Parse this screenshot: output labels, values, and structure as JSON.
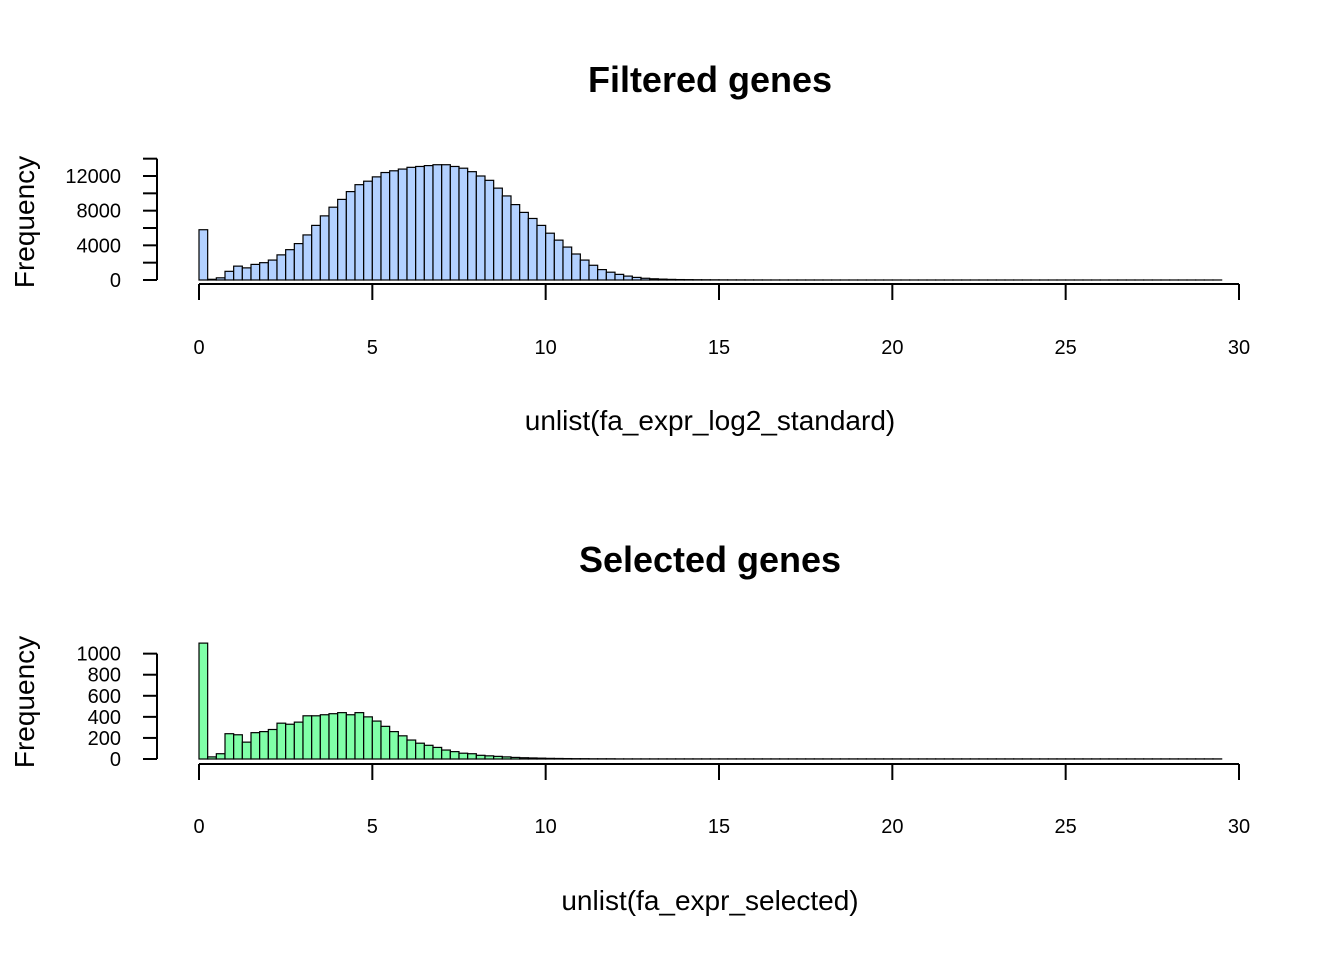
{
  "chart_data": [
    {
      "type": "bar",
      "title": "Filtered genes",
      "xlabel": "unlist(fa_expr_log2_standard)",
      "ylabel": "Frequency",
      "xlim": [
        0,
        30
      ],
      "ylim": [
        0,
        13500
      ],
      "x_ticks": [
        "0",
        "5",
        "10",
        "15",
        "20",
        "25",
        "30"
      ],
      "y_ticks": [
        "0",
        "4000",
        "8000",
        "12000"
      ],
      "minor_y_ticks": [
        2000,
        6000,
        10000,
        14000
      ],
      "bin_width": 0.25,
      "x_start": 0,
      "bar_color": "#b3d1ff",
      "values": [
        5800,
        80,
        250,
        1000,
        1600,
        1400,
        1800,
        2000,
        2300,
        2900,
        3500,
        4200,
        5200,
        6300,
        7400,
        8400,
        9300,
        10200,
        11000,
        11400,
        11900,
        12400,
        12600,
        12800,
        13000,
        13100,
        13200,
        13300,
        13300,
        13100,
        12900,
        12500,
        12000,
        11500,
        10600,
        9700,
        8700,
        7800,
        7100,
        6300,
        5400,
        4600,
        3800,
        3000,
        2300,
        1700,
        1200,
        900,
        650,
        450,
        300,
        200,
        140,
        100,
        70,
        50,
        40,
        30,
        25,
        20,
        15,
        12,
        10,
        8,
        6,
        5,
        4,
        3,
        3,
        2,
        2,
        2,
        1,
        1,
        1,
        1,
        1,
        1,
        1,
        1,
        1,
        1,
        1,
        1,
        1,
        1,
        1,
        1,
        1,
        1,
        1,
        1,
        1,
        1,
        1,
        1,
        1,
        1,
        1,
        1,
        1,
        1,
        1,
        1,
        1,
        1,
        1,
        1,
        1,
        1,
        1,
        1,
        1,
        1,
        1,
        1,
        1,
        1
      ]
    },
    {
      "type": "bar",
      "title": "Selected genes",
      "xlabel": "unlist(fa_expr_selected)",
      "ylabel": "Frequency",
      "xlim": [
        0,
        30
      ],
      "ylim": [
        0,
        1120
      ],
      "x_ticks": [
        "0",
        "5",
        "10",
        "15",
        "20",
        "25",
        "30"
      ],
      "y_ticks": [
        "0",
        "200",
        "400",
        "600",
        "800",
        "1000"
      ],
      "minor_y_ticks": [],
      "bin_width": 0.25,
      "x_start": 0,
      "bar_color": "#80ffa8",
      "values": [
        1100,
        20,
        50,
        240,
        230,
        160,
        250,
        260,
        280,
        340,
        330,
        350,
        410,
        410,
        420,
        430,
        440,
        420,
        440,
        400,
        360,
        310,
        260,
        220,
        180,
        150,
        130,
        110,
        85,
        70,
        55,
        50,
        35,
        30,
        25,
        20,
        15,
        12,
        10,
        8,
        6,
        5,
        4,
        3,
        3,
        2,
        2,
        2,
        1,
        1,
        1,
        1,
        1,
        1,
        1,
        1,
        1,
        1,
        1,
        1,
        1,
        1,
        1,
        1,
        1,
        1,
        1,
        1,
        1,
        1,
        1,
        1,
        1,
        1,
        1,
        1,
        1,
        1,
        1,
        1,
        1,
        1,
        1,
        1,
        1,
        1,
        1,
        1,
        1,
        1,
        1,
        1,
        1,
        1,
        1,
        1,
        1,
        1,
        1,
        1,
        1,
        1,
        1,
        1,
        1,
        1,
        1,
        1,
        1,
        1,
        1,
        1,
        1,
        1,
        1,
        1,
        1,
        1
      ]
    }
  ]
}
